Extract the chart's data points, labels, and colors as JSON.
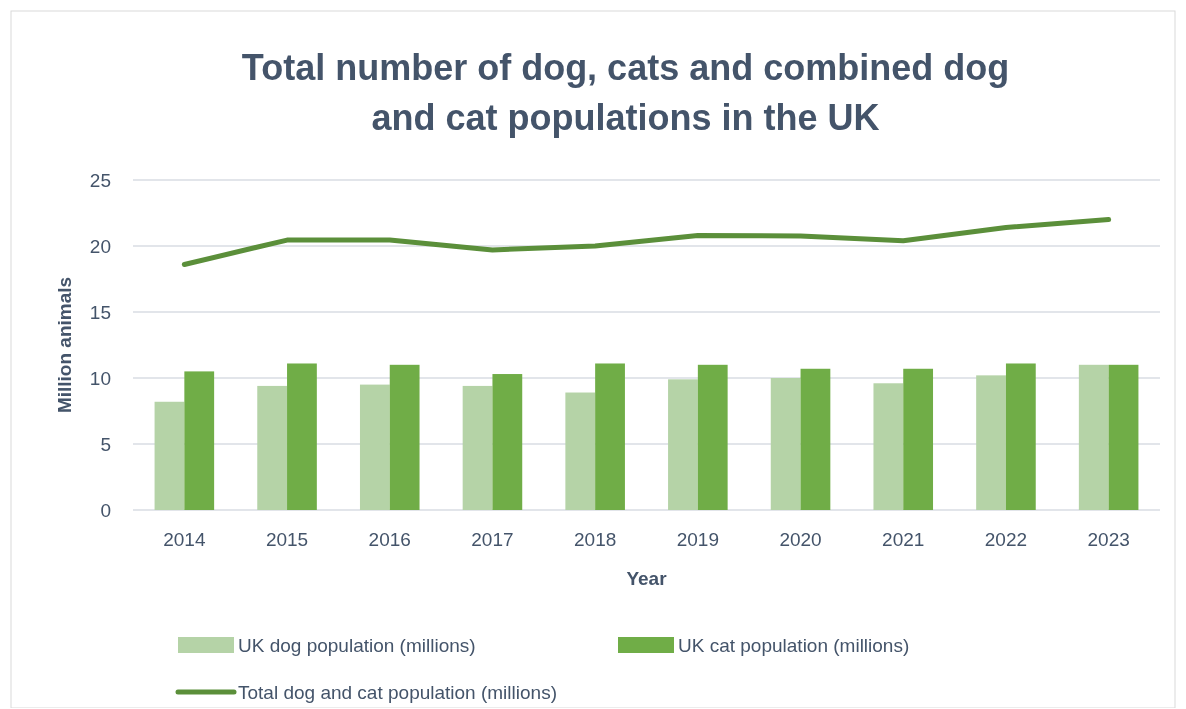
{
  "chart_data": {
    "type": "bar",
    "title": "Total number of dog, cats and combined dog and cat populations in the UK",
    "xlabel": "Year",
    "ylabel": "Million animals",
    "categories": [
      "2014",
      "2015",
      "2016",
      "2017",
      "2018",
      "2019",
      "2020",
      "2021",
      "2022",
      "2023"
    ],
    "series": [
      {
        "name": "UK dog population (millions)",
        "color": "#b5d3a7",
        "values": [
          8.2,
          9.4,
          9.5,
          9.4,
          8.9,
          9.9,
          10.0,
          9.6,
          10.2,
          11.0
        ]
      },
      {
        "name": "UK cat population (millions)",
        "color": "#70ad47",
        "values": [
          10.5,
          11.1,
          11.0,
          10.3,
          11.1,
          11.0,
          10.7,
          10.7,
          11.1,
          11.0
        ]
      },
      {
        "name": "Total dog and cat population (millions)",
        "type": "line",
        "color": "#5b8f3a",
        "values": [
          18.6,
          20.45,
          20.45,
          19.7,
          20.0,
          20.8,
          20.75,
          20.4,
          21.4,
          22.0
        ]
      }
    ],
    "ylim": [
      0,
      25
    ],
    "yticks": [
      0,
      5,
      10,
      15,
      20,
      25
    ],
    "grid": "y",
    "legend": "bottom",
    "line_style": "solid",
    "marker": "none"
  }
}
